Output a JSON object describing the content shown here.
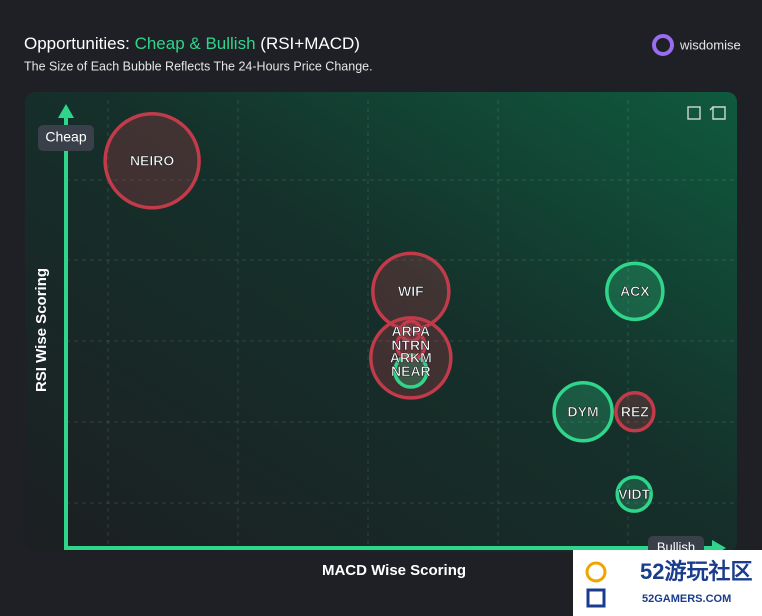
{
  "header": {
    "title_prefix": "Opportunities:",
    "title_highlight": "Cheap & Bullish",
    "title_suffix": "(RSI+MACD)",
    "subtitle": "The Size of Each Bubble Reflects The 24-Hours Price Change.",
    "brand": "wisdomise"
  },
  "chart_data": {
    "type": "bubble",
    "x_label": "MACD Wise Scoring",
    "y_label": "RSI Wise Scoring",
    "y_end_label": "Cheap",
    "x_end_label": "Bullish",
    "xlim": [
      0,
      100
    ],
    "ylim": [
      0,
      100
    ],
    "grid": true,
    "categories": [
      "NEIRO",
      "ARKM",
      "WIF",
      "DYM",
      "ACX",
      "REZ",
      "VIDT",
      "NEAR",
      "NTRN",
      "ARPA"
    ],
    "x": [
      13.3,
      52.8,
      52.8,
      79.1,
      87.0,
      87.0,
      86.9,
      52.8,
      52.8,
      52.8
    ],
    "values": [
      88.4,
      43.4,
      58.6,
      31.1,
      58.6,
      31.1,
      12.3,
      40.4,
      46.3,
      49.5
    ],
    "sizes": [
      47,
      40,
      38,
      29,
      28,
      19,
      17,
      16,
      14,
      10
    ],
    "colors": [
      "#c23b4a",
      "#c23b4a",
      "#c23b4a",
      "#2fd58a",
      "#2fd58a",
      "#c23b4a",
      "#2fd58a",
      "#2fd58a",
      "#c23b4a",
      "#c23b4a"
    ]
  },
  "watermark": {
    "name": "52游玩社区",
    "site": "52GAMERS.COM"
  }
}
